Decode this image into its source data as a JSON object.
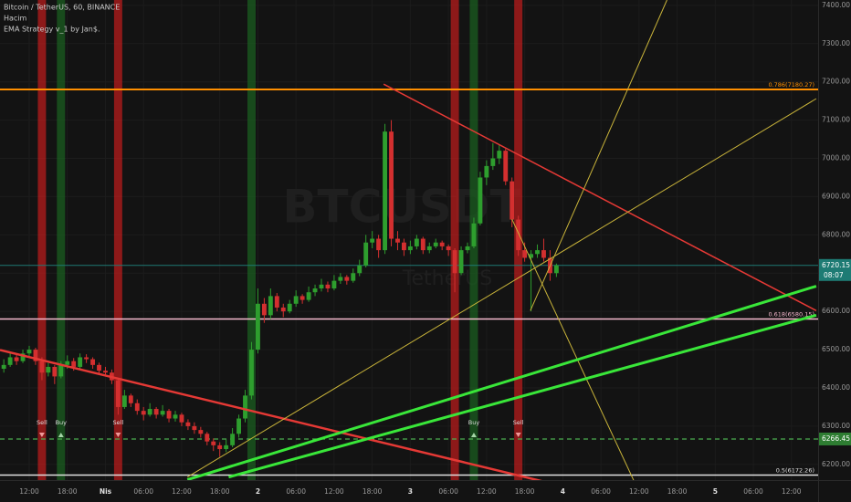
{
  "chart_data": {
    "type": "candlestick",
    "title": "Bitcoin / TetherUS, 60, BINANCE",
    "indicators": [
      "Hacim",
      "EMA Strategy v_1 by Jan$."
    ],
    "watermark": [
      "BTCUSDT",
      "TetherUS"
    ],
    "up_color": "#2e9e2e",
    "down_color": "#d32f2f",
    "grid": true,
    "xlim": [
      7.4,
      136.2
    ],
    "ylim": [
      6159,
      7414
    ],
    "yticks": [
      {
        "value": 6200,
        "label": "6200.00"
      },
      {
        "value": 6300,
        "label": "6300.00"
      },
      {
        "value": 6400,
        "label": "6400.00"
      },
      {
        "value": 6500,
        "label": "6500.00"
      },
      {
        "value": 6600,
        "label": "6600.00"
      },
      {
        "value": 6700,
        "label": "6700.00"
      },
      {
        "value": 6800,
        "label": "6800.00"
      },
      {
        "value": 6900,
        "label": "6900.00"
      },
      {
        "value": 7000,
        "label": "7000.00"
      },
      {
        "value": 7100,
        "label": "7100.00"
      },
      {
        "value": 7200,
        "label": "7200.00"
      },
      {
        "value": 7300,
        "label": "7300.00"
      },
      {
        "value": 7400,
        "label": "7400.00"
      }
    ],
    "xticks": [
      {
        "value": 12,
        "label": "12:00"
      },
      {
        "value": 18,
        "label": "18:00"
      },
      {
        "value": 24,
        "label": "Nis"
      },
      {
        "value": 30,
        "label": "06:00"
      },
      {
        "value": 36,
        "label": "12:00"
      },
      {
        "value": 42,
        "label": "18:00"
      },
      {
        "value": 48,
        "label": "2"
      },
      {
        "value": 54,
        "label": "06:00"
      },
      {
        "value": 60,
        "label": "12:00"
      },
      {
        "value": 66,
        "label": "18:00"
      },
      {
        "value": 72,
        "label": "3"
      },
      {
        "value": 78,
        "label": "06:00"
      },
      {
        "value": 84,
        "label": "12:00"
      },
      {
        "value": 90,
        "label": "18:00"
      },
      {
        "value": 96,
        "label": "4"
      },
      {
        "value": 102,
        "label": "06:00"
      },
      {
        "value": 108,
        "label": "12:00"
      },
      {
        "value": 114,
        "label": "18:00"
      },
      {
        "value": 120,
        "label": "5"
      },
      {
        "value": 126,
        "label": "06:00"
      },
      {
        "value": 132,
        "label": "12:00"
      }
    ],
    "x": [
      8,
      9,
      10,
      11,
      12,
      13,
      14,
      15,
      16,
      17,
      18,
      19,
      20,
      21,
      22,
      23,
      24,
      25,
      26,
      27,
      28,
      29,
      30,
      31,
      32,
      33,
      34,
      35,
      36,
      37,
      38,
      39,
      40,
      41,
      42,
      43,
      44,
      45,
      46,
      47,
      48,
      49,
      50,
      51,
      52,
      53,
      54,
      55,
      56,
      57,
      58,
      59,
      60,
      61,
      62,
      63,
      64,
      65,
      66,
      67,
      68,
      69,
      70,
      71,
      72,
      73,
      74,
      75,
      76,
      77,
      78,
      79,
      80,
      81,
      82,
      83,
      84,
      85,
      86,
      87,
      88,
      89,
      90,
      91,
      92,
      93,
      94,
      95
    ],
    "ohlc": [
      [
        6450,
        6475,
        6440,
        6460
      ],
      [
        6460,
        6495,
        6455,
        6480
      ],
      [
        6480,
        6490,
        6460,
        6470
      ],
      [
        6470,
        6500,
        6465,
        6490
      ],
      [
        6490,
        6510,
        6480,
        6500
      ],
      [
        6500,
        6505,
        6460,
        6470
      ],
      [
        6470,
        6480,
        6420,
        6440
      ],
      [
        6440,
        6465,
        6430,
        6455
      ],
      [
        6455,
        6460,
        6410,
        6430
      ],
      [
        6430,
        6470,
        6425,
        6460
      ],
      [
        6460,
        6485,
        6450,
        6470
      ],
      [
        6470,
        6478,
        6445,
        6455
      ],
      [
        6455,
        6490,
        6450,
        6480
      ],
      [
        6480,
        6488,
        6465,
        6475
      ],
      [
        6475,
        6480,
        6450,
        6460
      ],
      [
        6460,
        6466,
        6435,
        6445
      ],
      [
        6445,
        6455,
        6430,
        6440
      ],
      [
        6440,
        6448,
        6410,
        6420
      ],
      [
        6420,
        6425,
        6330,
        6350
      ],
      [
        6350,
        6395,
        6345,
        6380
      ],
      [
        6380,
        6385,
        6350,
        6360
      ],
      [
        6360,
        6370,
        6330,
        6340
      ],
      [
        6340,
        6350,
        6315,
        6330
      ],
      [
        6330,
        6360,
        6325,
        6345
      ],
      [
        6345,
        6350,
        6320,
        6330
      ],
      [
        6330,
        6355,
        6325,
        6340
      ],
      [
        6340,
        6345,
        6310,
        6320
      ],
      [
        6320,
        6340,
        6312,
        6330
      ],
      [
        6330,
        6335,
        6300,
        6310
      ],
      [
        6310,
        6318,
        6290,
        6300
      ],
      [
        6300,
        6310,
        6280,
        6290
      ],
      [
        6290,
        6298,
        6270,
        6280
      ],
      [
        6280,
        6285,
        6250,
        6260
      ],
      [
        6260,
        6268,
        6235,
        6250
      ],
      [
        6250,
        6258,
        6220,
        6240
      ],
      [
        6240,
        6265,
        6232,
        6250
      ],
      [
        6250,
        6295,
        6245,
        6280
      ],
      [
        6280,
        6330,
        6270,
        6320
      ],
      [
        6320,
        6395,
        6310,
        6380
      ],
      [
        6380,
        6520,
        6370,
        6500
      ],
      [
        6500,
        6660,
        6490,
        6620
      ],
      [
        6620,
        6635,
        6570,
        6590
      ],
      [
        6590,
        6660,
        6580,
        6640
      ],
      [
        6640,
        6648,
        6600,
        6610
      ],
      [
        6610,
        6620,
        6585,
        6600
      ],
      [
        6600,
        6630,
        6595,
        6620
      ],
      [
        6620,
        6655,
        6612,
        6640
      ],
      [
        6640,
        6645,
        6620,
        6630
      ],
      [
        6630,
        6665,
        6625,
        6650
      ],
      [
        6650,
        6670,
        6640,
        6660
      ],
      [
        6660,
        6685,
        6652,
        6670
      ],
      [
        6670,
        6678,
        6650,
        6660
      ],
      [
        6660,
        6695,
        6655,
        6680
      ],
      [
        6680,
        6700,
        6672,
        6690
      ],
      [
        6690,
        6695,
        6670,
        6680
      ],
      [
        6680,
        6712,
        6675,
        6700
      ],
      [
        6700,
        6735,
        6692,
        6720
      ],
      [
        6720,
        6800,
        6715,
        6780
      ],
      [
        6780,
        6810,
        6765,
        6790
      ],
      [
        6790,
        6800,
        6740,
        6760
      ],
      [
        6760,
        7090,
        6750,
        7070
      ],
      [
        7070,
        7100,
        6770,
        6790
      ],
      [
        6790,
        6810,
        6760,
        6780
      ],
      [
        6780,
        6790,
        6745,
        6760
      ],
      [
        6760,
        6785,
        6750,
        6770
      ],
      [
        6770,
        6800,
        6762,
        6790
      ],
      [
        6790,
        6795,
        6750,
        6760
      ],
      [
        6760,
        6780,
        6752,
        6770
      ],
      [
        6770,
        6790,
        6765,
        6780
      ],
      [
        6780,
        6785,
        6760,
        6770
      ],
      [
        6770,
        6775,
        6745,
        6760
      ],
      [
        6760,
        6765,
        6650,
        6700
      ],
      [
        6700,
        6770,
        6695,
        6760
      ],
      [
        6760,
        6780,
        6752,
        6770
      ],
      [
        6770,
        6845,
        6765,
        6830
      ],
      [
        6830,
        6965,
        6825,
        6950
      ],
      [
        6950,
        6995,
        6930,
        6980
      ],
      [
        6980,
        7040,
        6970,
        7000
      ],
      [
        7000,
        7035,
        6985,
        7020
      ],
      [
        7020,
        7025,
        6930,
        6940
      ],
      [
        6940,
        6950,
        6820,
        6840
      ],
      [
        6840,
        6850,
        6745,
        6760
      ],
      [
        6760,
        6780,
        6730,
        6740
      ],
      [
        6740,
        6760,
        6600,
        6750
      ],
      [
        6750,
        6775,
        6740,
        6760
      ],
      [
        6760,
        6790,
        6730,
        6740
      ],
      [
        6740,
        6760,
        6680,
        6700
      ],
      [
        6700,
        6725,
        6690,
        6720
      ]
    ],
    "signals": [
      {
        "x": 14,
        "color": "#b71c1c",
        "label": "Sell"
      },
      {
        "x": 17,
        "color": "#1b5e20",
        "label": "Buy"
      },
      {
        "x": 26,
        "color": "#b71c1c",
        "label": "Sell"
      },
      {
        "x": 47,
        "color": "#1b5e20"
      },
      {
        "x": 79,
        "color": "#b71c1c"
      },
      {
        "x": 82,
        "color": "#1b5e20",
        "label": "Buy"
      },
      {
        "x": 89,
        "color": "#b71c1c",
        "label": "Sell"
      }
    ],
    "levels": [
      {
        "value": 7180.27,
        "label": "0.786(7180.27)",
        "color": "#ff8f00"
      },
      {
        "value": 6580.15,
        "label": "0.618(6580.15)",
        "color": "#f8bbd0"
      },
      {
        "value": 6172.26,
        "label": "0.5(6172.26)",
        "color": "#e0e0e0"
      }
    ],
    "alert_level": {
      "value": 6266.45,
      "color": "#4caf50"
    },
    "last_price": {
      "value": 6720.15,
      "countdown": "08:07",
      "color": "#1e7b74"
    },
    "trendlines": [
      {
        "x": [
          7.4,
          106.7
        ],
        "y": [
          6499,
          6100
        ],
        "color": "#e53935",
        "width": 2.5
      },
      {
        "x": [
          67.8,
          135.9
        ],
        "y": [
          7194,
          6602
        ],
        "color": "#e53935",
        "width": 1.5
      },
      {
        "x": [
          36.9,
          135.9
        ],
        "y": [
          6167,
          7156
        ],
        "color": "#c9b43a",
        "width": 1
      },
      {
        "x": [
          90.9,
          112.4
        ],
        "y": [
          6602,
          7414
        ],
        "color": "#c9b43a",
        "width": 1
      },
      {
        "x": [
          88,
          108.8
        ],
        "y": [
          6841,
          6100
        ],
        "color": "#c9b43a",
        "width": 1
      },
      {
        "x": [
          36.9,
          135.9
        ],
        "y": [
          6160,
          6666
        ],
        "color": "#39e639",
        "width": 3
      },
      {
        "x": [
          43.4,
          135.9
        ],
        "y": [
          6167,
          6590
        ],
        "color": "#39e639",
        "width": 3
      }
    ]
  }
}
